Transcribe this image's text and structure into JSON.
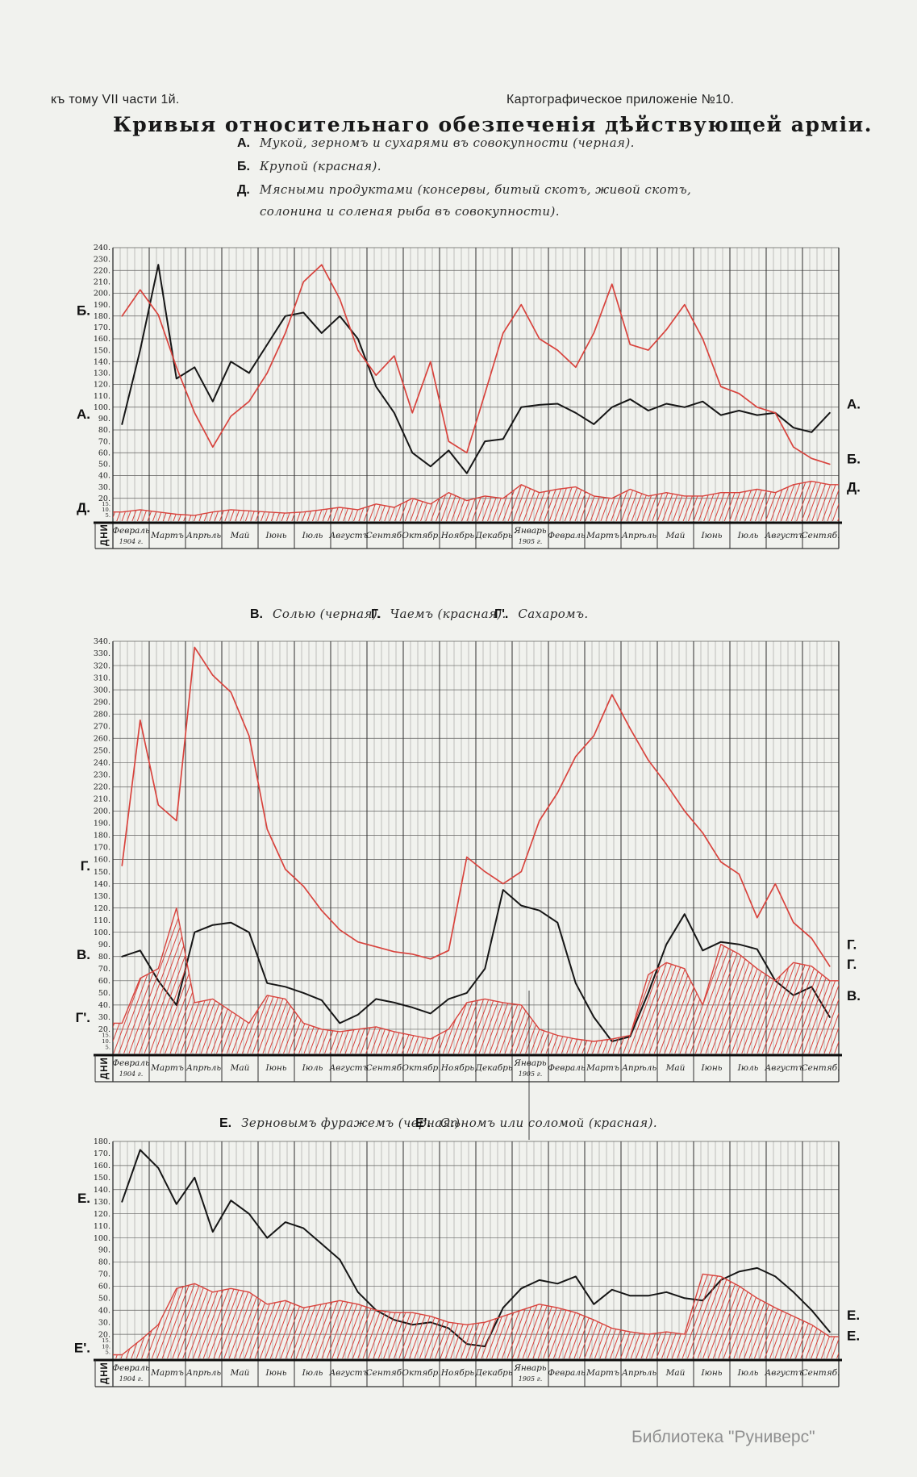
{
  "page": {
    "header_left": "къ тому VII части 1й.",
    "header_right": "Картографическое приложеніе №10.",
    "title": "Кривыя относительнаго обезпеченія дѣйствующей арміи.",
    "watermark": "Библиотека \"Руниверс\"",
    "axis_caption": "ДНИ"
  },
  "months": {
    "labels": [
      "Февраль",
      "Мартъ",
      "Апрѣль",
      "Май",
      "Іюнь",
      "Іюль",
      "Августъ",
      "Сентяб.",
      "Октябр.",
      "Ноябрь",
      "Декабрь",
      "Январь",
      "Февраль",
      "Мартъ",
      "Апрѣль",
      "Май",
      "Іюнь",
      "Іюль",
      "Августъ",
      "Сентяб."
    ],
    "year_notes": [
      {
        "index": 0,
        "label": "1904 г."
      },
      {
        "index": 11,
        "label": "1905 г."
      }
    ]
  },
  "colors": {
    "black_line": "#161616",
    "red_line": "#d8433d",
    "paper": "#f1f2ee",
    "grid": "#3c3c3c",
    "watermark": "#8f8f8f"
  },
  "chart_data": [
    {
      "type": "line",
      "legend": [
        {
          "key": "А.",
          "text": "Мукой, зерномъ и сухарями въ совокупности (черная)."
        },
        {
          "key": "Б.",
          "text": "Крупой (красная)."
        },
        {
          "key": "Д.",
          "text": "Мясными продуктами (консервы, битый скотъ, живой скотъ,",
          "text2": "солонина и соленая рыба въ совокупности)."
        }
      ],
      "ylim": [
        0,
        240
      ],
      "grid_step": 20,
      "y_ticks": [
        240,
        230,
        220,
        210,
        200,
        190,
        180,
        170,
        160,
        150,
        140,
        130,
        120,
        110,
        100,
        90,
        80,
        70,
        60,
        50,
        40,
        30,
        20,
        15,
        10,
        5
      ],
      "axis_caption": "ДНИ",
      "x_points_per_month": 2,
      "left_axis_letters": [
        {
          "text": "Б.",
          "value": 185
        },
        {
          "text": "А.",
          "value": 94
        },
        {
          "text": "Д.",
          "value": 12
        }
      ],
      "right_axis_letters": [
        {
          "text": "А.",
          "value": 103
        },
        {
          "text": "Б.",
          "value": 55
        },
        {
          "text": "Д.",
          "value": 30
        }
      ],
      "series": [
        {
          "name": "А — мукой, зерномъ и сухарями (черная)",
          "style": "line",
          "color": "black",
          "values": [
            85,
            150,
            225,
            125,
            135,
            105,
            140,
            130,
            155,
            180,
            183,
            165,
            180,
            160,
            118,
            95,
            60,
            48,
            62,
            42,
            70,
            72,
            100,
            102,
            103,
            95,
            85,
            100,
            107,
            97,
            103,
            100,
            105,
            93,
            97,
            93,
            95,
            82,
            78,
            95
          ]
        },
        {
          "name": "Б — крупой (красная)",
          "style": "line",
          "color": "red",
          "values": [
            180,
            203,
            181,
            135,
            95,
            65,
            92,
            105,
            130,
            165,
            210,
            225,
            195,
            150,
            128,
            145,
            95,
            140,
            70,
            60,
            112,
            165,
            190,
            160,
            150,
            135,
            165,
            208,
            155,
            150,
            168,
            190,
            160,
            118,
            112,
            100,
            95,
            65,
            55,
            50
          ]
        },
        {
          "name": "Д — мясными продуктами (красная штриховка)",
          "style": "hatched-area",
          "color": "red",
          "values": [
            8,
            10,
            8,
            6,
            5,
            8,
            10,
            9,
            8,
            7,
            8,
            10,
            12,
            10,
            15,
            12,
            20,
            15,
            25,
            18,
            22,
            20,
            32,
            25,
            28,
            30,
            22,
            20,
            28,
            22,
            25,
            22,
            22,
            25,
            25,
            28,
            25,
            32,
            35,
            32
          ]
        }
      ]
    },
    {
      "type": "line",
      "legend": [
        {
          "key": "В.",
          "text": "Солью (черная)."
        },
        {
          "key": "Г.",
          "text": "Чаемъ (красная)."
        },
        {
          "key": "Г'.",
          "text": "Сахаромъ."
        }
      ],
      "ylim": [
        0,
        340
      ],
      "grid_step": 20,
      "y_ticks": [
        340,
        330,
        320,
        310,
        300,
        290,
        280,
        270,
        260,
        250,
        240,
        230,
        220,
        210,
        200,
        190,
        180,
        170,
        160,
        150,
        140,
        130,
        120,
        110,
        100,
        90,
        80,
        70,
        60,
        50,
        40,
        30,
        20,
        15,
        10,
        5
      ],
      "axis_caption": "ДНИ",
      "x_points_per_month": 2,
      "left_axis_letters": [
        {
          "text": "Г.",
          "value": 155
        },
        {
          "text": "В.",
          "value": 82
        },
        {
          "text": "Г'.",
          "value": 30
        }
      ],
      "right_axis_letters": [
        {
          "text": "Г.",
          "value": 90
        },
        {
          "text": "Г.",
          "value": 74
        },
        {
          "text": "В.",
          "value": 48
        }
      ],
      "series": [
        {
          "name": "В — солью (черная)",
          "style": "line",
          "color": "black",
          "values": [
            80,
            85,
            60,
            40,
            100,
            106,
            108,
            100,
            58,
            55,
            50,
            44,
            25,
            32,
            45,
            42,
            38,
            33,
            45,
            50,
            70,
            135,
            122,
            118,
            108,
            58,
            30,
            10,
            14,
            50,
            90,
            115,
            85,
            92,
            90,
            86,
            60,
            48,
            55,
            30
          ]
        },
        {
          "name": "Г — чаемъ (красная)",
          "style": "line",
          "color": "red",
          "values": [
            155,
            275,
            205,
            192,
            335,
            312,
            298,
            262,
            185,
            152,
            138,
            118,
            102,
            92,
            88,
            84,
            82,
            78,
            85,
            162,
            150,
            140,
            150,
            192,
            215,
            245,
            262,
            296,
            268,
            242,
            222,
            200,
            182,
            158,
            148,
            112,
            140,
            108,
            95,
            72
          ]
        },
        {
          "name": "Г' — сахаромъ (красная штриховка)",
          "style": "hatched-area",
          "color": "red",
          "values": [
            25,
            62,
            70,
            120,
            42,
            45,
            35,
            25,
            48,
            45,
            25,
            20,
            18,
            20,
            22,
            18,
            15,
            12,
            20,
            42,
            45,
            42,
            40,
            20,
            15,
            12,
            10,
            12,
            15,
            65,
            75,
            70,
            40,
            90,
            82,
            70,
            60,
            75,
            72,
            60
          ]
        }
      ]
    },
    {
      "type": "line",
      "legend": [
        {
          "key": "Е.",
          "text": "Зерновымъ фуражемъ (черная.)"
        },
        {
          "key": "Е'.",
          "text": "Сѣномъ или соломой (красная)."
        }
      ],
      "ylim": [
        0,
        180
      ],
      "grid_step": 20,
      "y_ticks": [
        180,
        170,
        160,
        150,
        140,
        130,
        120,
        110,
        100,
        90,
        80,
        70,
        60,
        50,
        40,
        30,
        20,
        15,
        10,
        5
      ],
      "axis_caption": "ДНИ",
      "x_points_per_month": 2,
      "left_axis_letters": [
        {
          "text": "Е.",
          "value": 133
        },
        {
          "text": "Е'.",
          "value": 9
        }
      ],
      "right_axis_letters": [
        {
          "text": "Е.",
          "value": 36
        },
        {
          "text": "Е.",
          "value": 19
        }
      ],
      "series": [
        {
          "name": "Е — зерновымъ фуражемъ (черная)",
          "style": "line",
          "color": "black",
          "values": [
            130,
            173,
            158,
            128,
            150,
            105,
            131,
            120,
            100,
            113,
            108,
            95,
            82,
            55,
            40,
            32,
            28,
            30,
            25,
            12,
            10,
            42,
            58,
            65,
            62,
            68,
            45,
            57,
            52,
            52,
            55,
            50,
            48,
            65,
            72,
            75,
            68,
            55,
            40,
            22
          ]
        },
        {
          "name": "Е' — сѣномъ или соломой (красная штриховка)",
          "style": "hatched-area",
          "color": "red",
          "values": [
            3,
            15,
            28,
            58,
            62,
            55,
            58,
            55,
            45,
            48,
            42,
            45,
            48,
            45,
            40,
            38,
            38,
            35,
            30,
            28,
            30,
            35,
            40,
            45,
            42,
            38,
            32,
            25,
            22,
            20,
            22,
            20,
            70,
            68,
            60,
            50,
            42,
            35,
            28,
            18
          ]
        }
      ]
    }
  ]
}
